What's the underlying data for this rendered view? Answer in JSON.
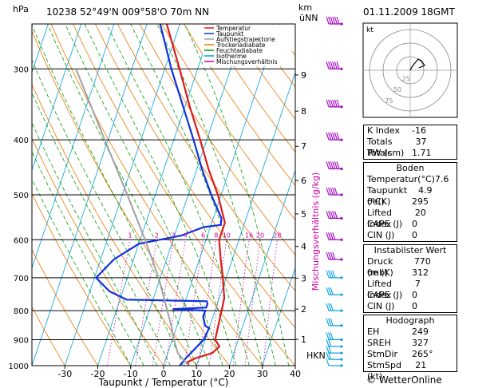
{
  "header": {
    "station_line": "10238  52°49'N  009°58'O    70m  NN",
    "hpa_label": "hPa",
    "km_label": "km",
    "asl_label": "üNN",
    "datetime": "01.11.2009  18GMT",
    "kt_label": "kt"
  },
  "chart_data": {
    "type": "line",
    "title": "",
    "xlabel": "Taupunkt / Temperatur (°C)",
    "ylabel": "hPa",
    "mixing_label": "Mischungsverhältnis (g/kg)",
    "xlim": [
      -40,
      40
    ],
    "x_ticks": [
      -30,
      -20,
      -10,
      0,
      10,
      20,
      30,
      40
    ],
    "pressure_levels": [
      300,
      400,
      500,
      600,
      700,
      800,
      900,
      1000
    ],
    "height_ticks": [
      "9",
      "8",
      "7",
      "6",
      "5",
      "4",
      "3",
      "2",
      "1"
    ],
    "hkn_label": "HKN",
    "mixing_ratio_values": [
      "1",
      "2",
      "3",
      "4",
      "6",
      "8",
      "10",
      "16",
      "20",
      "28"
    ],
    "legend": [
      {
        "name": "Temperatur",
        "color": "#e01818"
      },
      {
        "name": "Taupunkt",
        "color": "#1030e0"
      },
      {
        "name": "Aufstiegstrajektorie",
        "color": "#a0a0a0"
      },
      {
        "name": "Trockenadiabate",
        "color": "#e87800"
      },
      {
        "name": "Feuchtadiabate",
        "color": "#00a000"
      },
      {
        "name": "Isotherme",
        "color": "#00a0e0"
      },
      {
        "name": "Mischungsverhältnis",
        "color": "#d000a0"
      }
    ],
    "series": [
      {
        "name": "Temperatur",
        "color": "#e01818",
        "points": [
          [
            1000,
            7.6
          ],
          [
            985,
            7.0
          ],
          [
            970,
            9.0
          ],
          [
            950,
            13.5
          ],
          [
            925,
            15.0
          ],
          [
            900,
            13.0
          ],
          [
            850,
            12.5
          ],
          [
            800,
            12.0
          ],
          [
            760,
            11.5
          ],
          [
            700,
            9.0
          ],
          [
            650,
            6.5
          ],
          [
            600,
            4.0
          ],
          [
            560,
            4.0
          ],
          [
            500,
            -1.0
          ],
          [
            450,
            -6.5
          ],
          [
            400,
            -12.0
          ],
          [
            350,
            -18.5
          ],
          [
            300,
            -25.5
          ],
          [
            250,
            -34.0
          ]
        ]
      },
      {
        "name": "Taupunkt",
        "color": "#1030e0",
        "points": [
          [
            1000,
            4.9
          ],
          [
            970,
            6.0
          ],
          [
            950,
            7.0
          ],
          [
            900,
            9.5
          ],
          [
            860,
            10.0
          ],
          [
            850,
            8.5
          ],
          [
            820,
            7.0
          ],
          [
            800,
            7.0
          ],
          [
            795,
            -3.0
          ],
          [
            790,
            7.0
          ],
          [
            778,
            7.0
          ],
          [
            770,
            6.5
          ],
          [
            765,
            -18.0
          ],
          [
            740,
            -24.0
          ],
          [
            700,
            -29.5
          ],
          [
            650,
            -26.0
          ],
          [
            610,
            -20.0
          ],
          [
            590,
            -8.0
          ],
          [
            570,
            -2.0
          ],
          [
            565,
            3.0
          ],
          [
            550,
            2.5
          ],
          [
            500,
            -3.0
          ],
          [
            450,
            -8.5
          ],
          [
            400,
            -14.0
          ],
          [
            350,
            -20.5
          ],
          [
            300,
            -28.0
          ],
          [
            250,
            -36.0
          ]
        ]
      },
      {
        "name": "Aufstiegstrajektorie",
        "color": "#a0a0a0",
        "points": [
          [
            1000,
            7.6
          ],
          [
            950,
            3.0
          ],
          [
            900,
            0.5
          ],
          [
            850,
            -1.8
          ],
          [
            800,
            -4.5
          ],
          [
            700,
            -10.5
          ],
          [
            600,
            -18.5
          ],
          [
            500,
            -28.5
          ],
          [
            400,
            -41.0
          ],
          [
            300,
            -57.0
          ]
        ]
      }
    ],
    "hodograph": {
      "rings_kt": [
        "25",
        "50",
        "75"
      ],
      "points": [
        [
          0,
          0
        ],
        [
          2,
          -4
        ],
        [
          5,
          -8
        ],
        [
          10,
          -14
        ],
        [
          14,
          -12
        ],
        [
          18,
          -6
        ],
        [
          11,
          -3
        ]
      ]
    },
    "wind_barbs": [
      {
        "p": 1000,
        "dir": 200,
        "kt": 10
      },
      {
        "p": 975,
        "dir": 210,
        "kt": 15
      },
      {
        "p": 950,
        "dir": 220,
        "kt": 20
      },
      {
        "p": 925,
        "dir": 230,
        "kt": 20
      },
      {
        "p": 900,
        "dir": 240,
        "kt": 25
      },
      {
        "p": 850,
        "dir": 250,
        "kt": 25
      },
      {
        "p": 800,
        "dir": 255,
        "kt": 30
      },
      {
        "p": 750,
        "dir": 260,
        "kt": 30
      },
      {
        "p": 700,
        "dir": 265,
        "kt": 35
      },
      {
        "p": 650,
        "dir": 270,
        "kt": 40
      },
      {
        "p": 600,
        "dir": 275,
        "kt": 40
      },
      {
        "p": 550,
        "dir": 270,
        "kt": 45
      },
      {
        "p": 500,
        "dir": 270,
        "kt": 50
      },
      {
        "p": 450,
        "dir": 270,
        "kt": 55
      },
      {
        "p": 400,
        "dir": 275,
        "kt": 60
      },
      {
        "p": 350,
        "dir": 275,
        "kt": 65
      },
      {
        "p": 300,
        "dir": 280,
        "kt": 70
      },
      {
        "p": 250,
        "dir": 280,
        "kt": 75
      }
    ]
  },
  "indices": [
    {
      "label": "K Index",
      "value": "-16"
    },
    {
      "label": "Totals Totals",
      "value": "37"
    },
    {
      "label": "PW (cm)",
      "value": "1.71"
    }
  ],
  "boden": {
    "title": "Boden",
    "rows": [
      {
        "label": "Temperatur(°C)",
        "value": "7.6"
      },
      {
        "label": "Taupunkt (°C)",
        "value": "4.9"
      },
      {
        "label": "θe(K)",
        "value": "295"
      },
      {
        "label": "Lifted Index",
        "value": "20"
      },
      {
        "label": "CAPE (J)",
        "value": "0"
      },
      {
        "label": "CIN (J)",
        "value": "0"
      }
    ]
  },
  "instabil": {
    "title": "Instabilster Wert",
    "rows": [
      {
        "label": "Druck (mb)",
        "value": "770"
      },
      {
        "label": "θe (K)",
        "value": "312"
      },
      {
        "label": "Lifted Index",
        "value": "7"
      },
      {
        "label": "CAPE (J)",
        "value": "0"
      },
      {
        "label": "CIN (J)",
        "value": "0"
      }
    ]
  },
  "hodograph_table": {
    "title": "Hodograph",
    "rows": [
      {
        "label": "EH",
        "value": "249"
      },
      {
        "label": "SREH",
        "value": "327"
      },
      {
        "label": "StmDir",
        "value": "265°"
      },
      {
        "label": "StmSpd (kt)",
        "value": "21"
      }
    ]
  },
  "footer": {
    "copyright": "© WetterOnline"
  },
  "colors": {
    "temperature": "#e01818",
    "dewpoint": "#1030e0",
    "parcel": "#a0a0a0",
    "dry_adiabat": "#e87800",
    "moist_adiabat": "#00a000",
    "isotherm": "#00a0e0",
    "mixing_ratio": "#d000a0"
  }
}
